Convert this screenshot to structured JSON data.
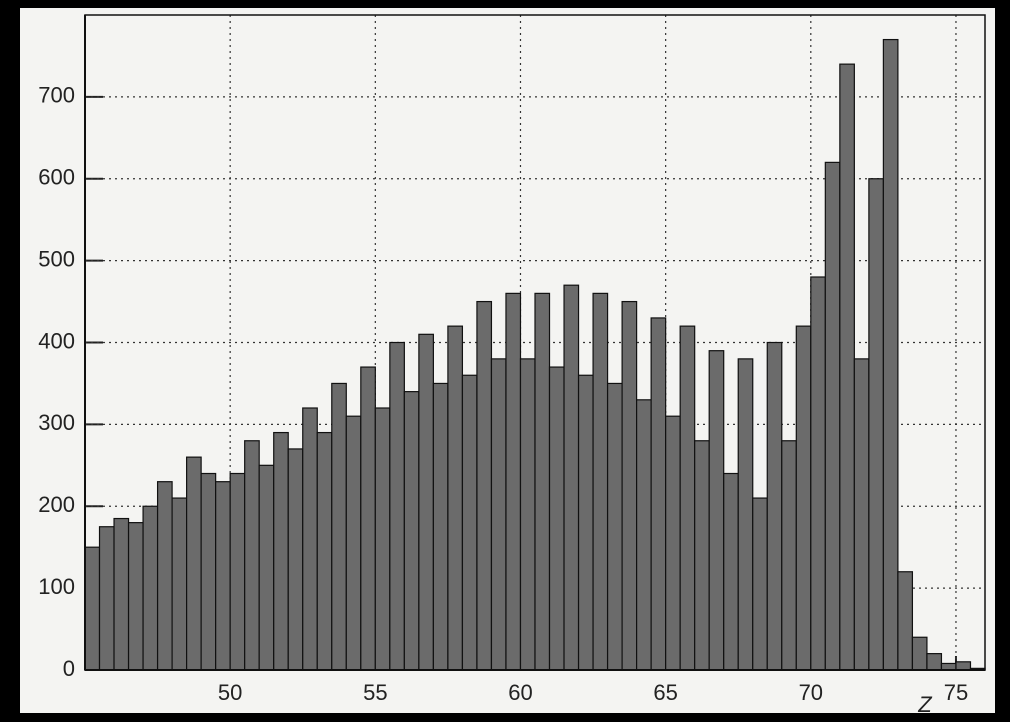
{
  "chart_data": {
    "type": "histogram",
    "x_label": "Z",
    "bins": [
      45,
      45.5,
      46,
      46.5,
      47,
      47.5,
      48,
      48.5,
      49,
      49.5,
      50,
      50.5,
      51,
      51.5,
      52,
      52.5,
      53,
      53.5,
      54,
      54.5,
      55,
      55.5,
      56,
      56.5,
      57,
      57.5,
      58,
      58.5,
      59,
      59.5,
      60,
      60.5,
      61,
      61.5,
      62,
      62.5,
      63,
      63.5,
      64,
      64.5,
      65,
      65.5,
      66,
      66.5,
      67,
      67.5,
      68,
      68.5,
      69,
      69.5,
      70,
      70.5,
      71,
      71.5,
      72,
      72.5,
      73,
      73.5,
      74,
      74.5,
      75,
      75.5,
      76
    ],
    "values": [
      150,
      175,
      185,
      180,
      200,
      230,
      210,
      260,
      240,
      230,
      240,
      280,
      250,
      290,
      270,
      320,
      290,
      350,
      310,
      370,
      320,
      400,
      340,
      410,
      350,
      420,
      360,
      450,
      380,
      460,
      380,
      460,
      370,
      470,
      360,
      460,
      350,
      450,
      330,
      430,
      310,
      420,
      280,
      390,
      240,
      380,
      210,
      400,
      280,
      420,
      480,
      620,
      740,
      380,
      600,
      770,
      120,
      40,
      20,
      8,
      10,
      2
    ],
    "color": "#6b6b6b",
    "xlim": [
      45,
      76
    ],
    "xticks": [
      50,
      55,
      60,
      65,
      70,
      75
    ],
    "ylim": [
      0,
      800
    ],
    "yticks": [
      0,
      100,
      200,
      300,
      400,
      500,
      600,
      700
    ],
    "grid": true
  }
}
